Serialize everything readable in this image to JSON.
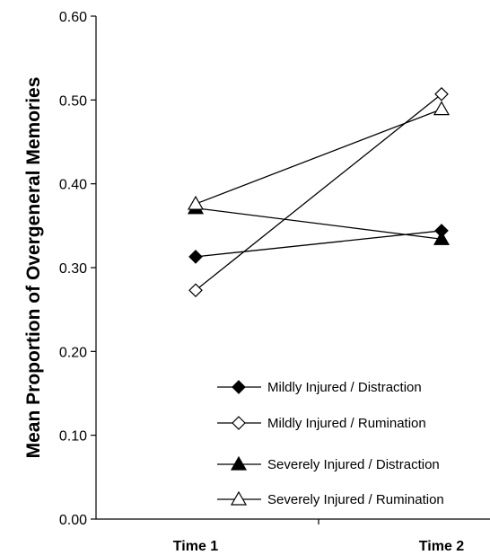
{
  "chart_data": {
    "type": "line",
    "title": "",
    "xlabel": "",
    "ylabel": "Mean Proportion of Overgeneral Memories",
    "categories": [
      "Time 1",
      "Time 2"
    ],
    "ylim": [
      0,
      0.6
    ],
    "yticks": [
      "0.00",
      "0.10",
      "0.20",
      "0.30",
      "0.40",
      "0.50",
      "0.60"
    ],
    "grid": false,
    "legend_position": "bottom-right",
    "series": [
      {
        "name": "Mildly Injured / Distraction",
        "marker": "diamond-filled",
        "values": [
          0.313,
          0.344
        ]
      },
      {
        "name": "Mildly Injured / Rumination",
        "marker": "diamond-open",
        "values": [
          0.273,
          0.507
        ]
      },
      {
        "name": "Severely Injured / Distraction",
        "marker": "triangle-filled",
        "values": [
          0.371,
          0.334
        ]
      },
      {
        "name": "Severely Injured / Rumination",
        "marker": "triangle-open",
        "values": [
          0.376,
          0.489
        ]
      }
    ]
  }
}
